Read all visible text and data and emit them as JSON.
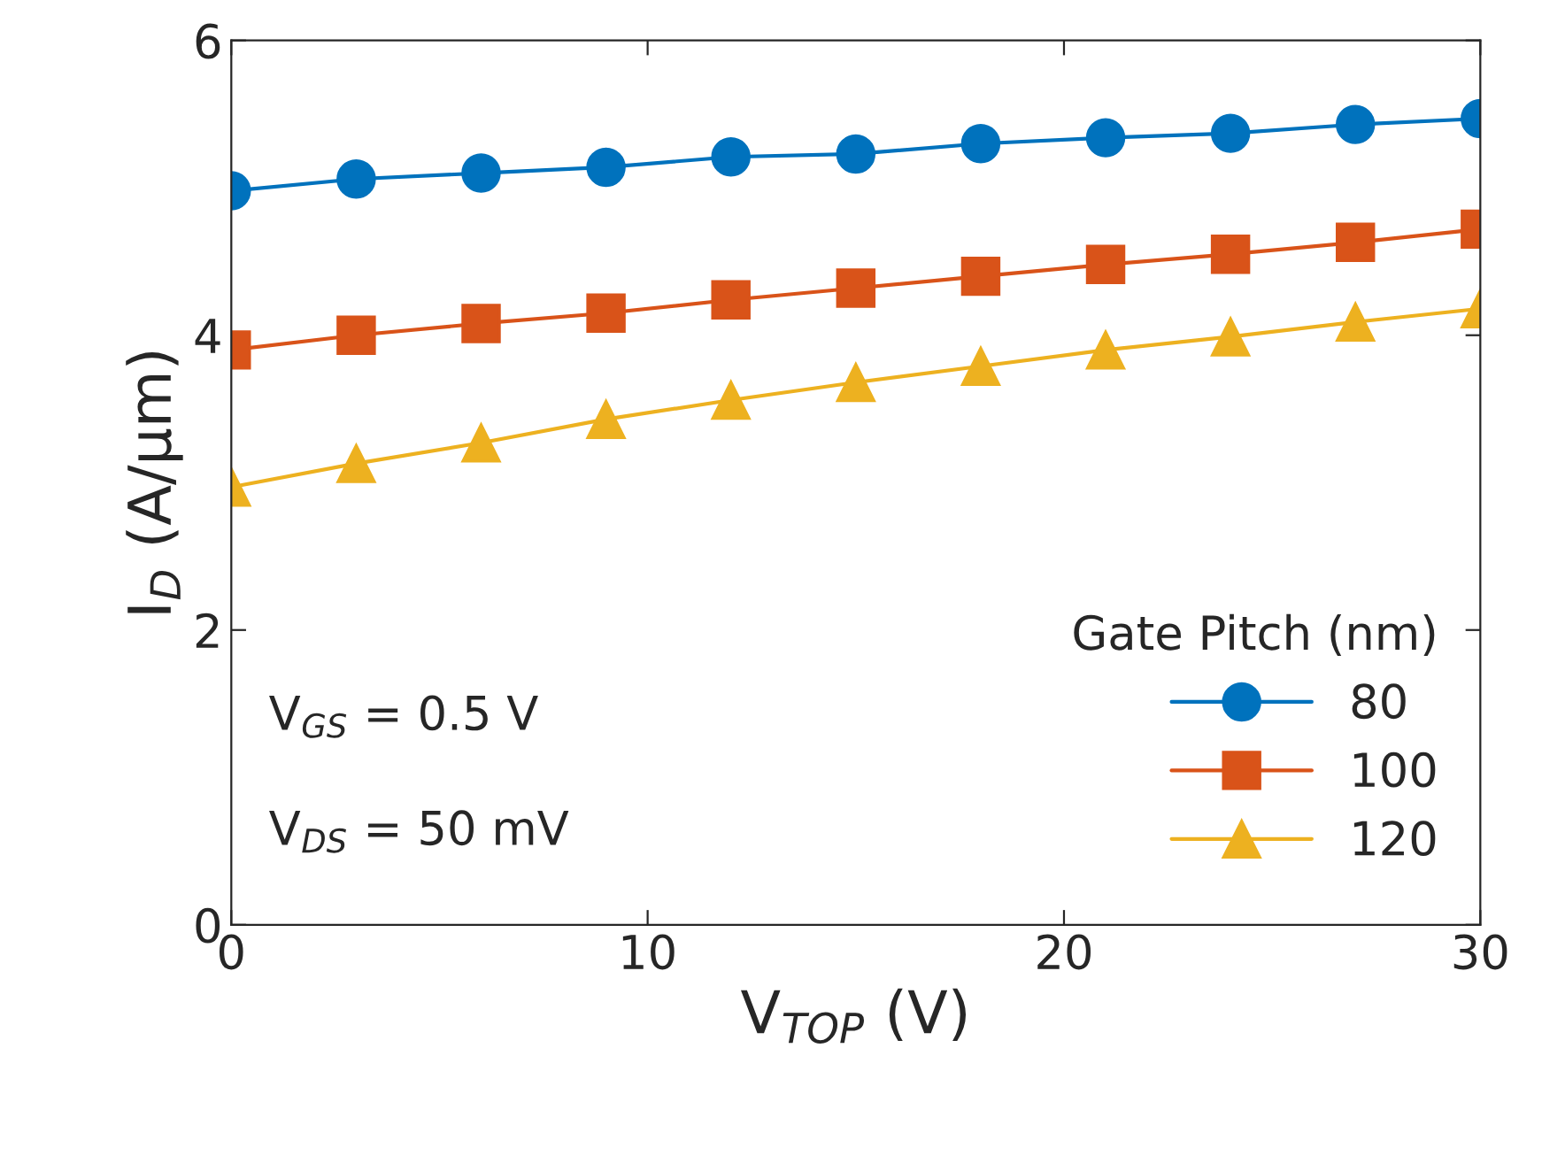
{
  "chart_data": {
    "type": "line",
    "xlabel": "V$_{TOP}$ (V)",
    "ylabel": "I$_{D}$ (A/μm)",
    "legend_title": "Gate Pitch (nm)",
    "legend": "bottom right",
    "grid": false,
    "x": [
      0,
      3,
      6,
      9,
      12,
      15,
      18,
      21,
      24,
      27,
      30
    ],
    "series": [
      {
        "name": "80",
        "color": "#0072bd",
        "marker": "circle",
        "values": [
          4.98,
          5.06,
          5.1,
          5.14,
          5.21,
          5.23,
          5.3,
          5.34,
          5.37,
          5.43,
          5.47
        ]
      },
      {
        "name": "100",
        "color": "#d95319",
        "marker": "square",
        "values": [
          3.9,
          4.0,
          4.08,
          4.15,
          4.24,
          4.32,
          4.4,
          4.48,
          4.55,
          4.63,
          4.72
        ]
      },
      {
        "name": "120",
        "color": "#edb120",
        "marker": "triangle",
        "values": [
          2.97,
          3.13,
          3.27,
          3.43,
          3.56,
          3.68,
          3.79,
          3.9,
          3.99,
          4.09,
          4.18
        ]
      }
    ],
    "xlim": [
      0,
      30
    ],
    "xticks": [
      0,
      10,
      20,
      30
    ],
    "ylim": [
      0,
      6
    ],
    "yticks": [
      0,
      2,
      4,
      6
    ],
    "annotations": [
      "V$_{GS}$ = 0.5 V",
      "V$_{DS}$ = 50 mV"
    ]
  }
}
